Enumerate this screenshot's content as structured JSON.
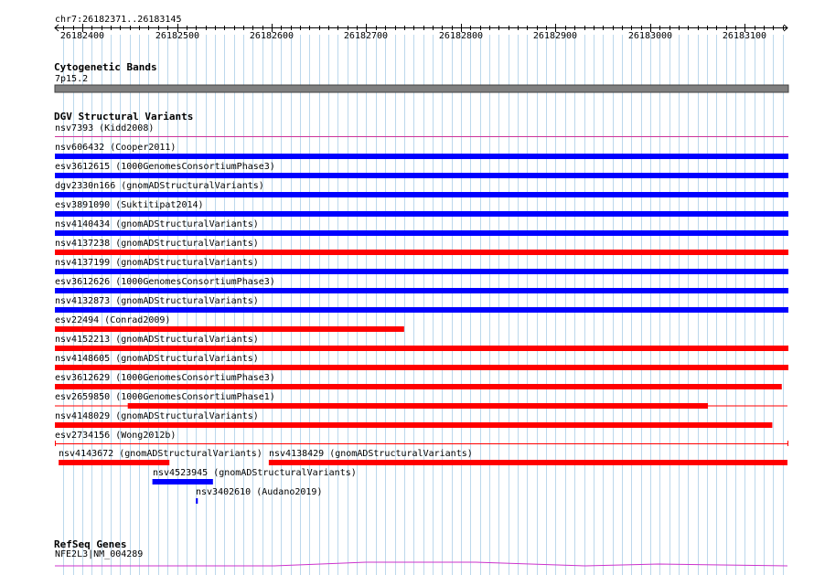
{
  "ruler": {
    "location": "chr7:26182371..26183145",
    "start": 26182371,
    "end": 26183145,
    "ticks": [
      "26182400",
      "26182500",
      "26182600",
      "26182700",
      "26182800",
      "26182900",
      "26183000",
      "26183100"
    ]
  },
  "cytobands": {
    "title": "Cytogenetic Bands",
    "band": "7p15.2",
    "color": "#808080"
  },
  "dgv": {
    "title": "DGV Structural Variants",
    "colors": {
      "gain": "#0000ff",
      "loss": "#ff0000",
      "other": "#cc3399"
    },
    "variants": [
      {
        "label": "nsv7393 (Kidd2008)",
        "type": "other",
        "start": 26182371,
        "end": 26183145,
        "thin": true
      },
      {
        "label": "nsv606432 (Cooper2011)",
        "type": "gain",
        "start": 26182371,
        "end": 26183145
      },
      {
        "label": "esv3612615 (1000GenomesConsortiumPhase3)",
        "type": "gain",
        "start": 26182371,
        "end": 26183145
      },
      {
        "label": "dgv2330n166 (gnomADStructuralVariants)",
        "type": "gain",
        "start": 26182371,
        "end": 26183145
      },
      {
        "label": "esv3891090 (Suktitipat2014)",
        "type": "gain",
        "start": 26182371,
        "end": 26183145
      },
      {
        "label": "nsv4140434 (gnomADStructuralVariants)",
        "type": "gain",
        "start": 26182371,
        "end": 26183145
      },
      {
        "label": "nsv4137238 (gnomADStructuralVariants)",
        "type": "loss",
        "start": 26182371,
        "end": 26183145
      },
      {
        "label": "nsv4137199 (gnomADStructuralVariants)",
        "type": "gain",
        "start": 26182371,
        "end": 26183145
      },
      {
        "label": "esv3612626 (1000GenomesConsortiumPhase3)",
        "type": "gain",
        "start": 26182371,
        "end": 26183145
      },
      {
        "label": "nsv4132873 (gnomADStructuralVariants)",
        "type": "gain",
        "start": 26182371,
        "end": 26183145
      },
      {
        "label": "esv22494 (Conrad2009)",
        "type": "loss",
        "start": 26182371,
        "end": 26182739
      },
      {
        "label": "nsv4152213 (gnomADStructuralVariants)",
        "type": "loss",
        "start": 26182371,
        "end": 26183145
      },
      {
        "label": "nsv4148605 (gnomADStructuralVariants)",
        "type": "loss",
        "start": 26182371,
        "end": 26183145
      },
      {
        "label": "esv3612629 (1000GenomesConsortiumPhase3)",
        "type": "loss",
        "start": 26182371,
        "end": 26183138
      },
      {
        "label": "esv2659850 (1000GenomesConsortiumPhase1)",
        "type": "loss",
        "start": 26182448,
        "end": 26183060,
        "thinExt": [
          26182371,
          26183145
        ]
      },
      {
        "label": "nsv4148029 (gnomADStructuralVariants)",
        "type": "loss",
        "start": 26182371,
        "end": 26183128
      },
      {
        "label": "esv2734156 (Wong2012b)",
        "type": "loss",
        "start": 26182371,
        "end": 26183145,
        "thin": true,
        "endcaps": true
      }
    ],
    "lower": [
      {
        "label": "nsv4143672 (gnomADStructuralVariants)",
        "type": "loss",
        "start": 26182375,
        "end": 26182492,
        "row": 0
      },
      {
        "label": "nsv4138429 (gnomADStructuralVariants)",
        "type": "loss",
        "start": 26182597,
        "end": 26183145,
        "row": 0
      },
      {
        "label": "nsv4523945 (gnomADStructuralVariants)",
        "type": "gain",
        "start": 26182474,
        "end": 26182538,
        "row": 1
      },
      {
        "label": "nsv3402610 (Audano2019)",
        "type": "gain",
        "start": 26182520,
        "end": 26182522,
        "row": 2
      }
    ]
  },
  "refseq": {
    "title": "RefSeq Genes",
    "gene": "NFE2L3|NM_004289",
    "color": "#cc33cc"
  }
}
